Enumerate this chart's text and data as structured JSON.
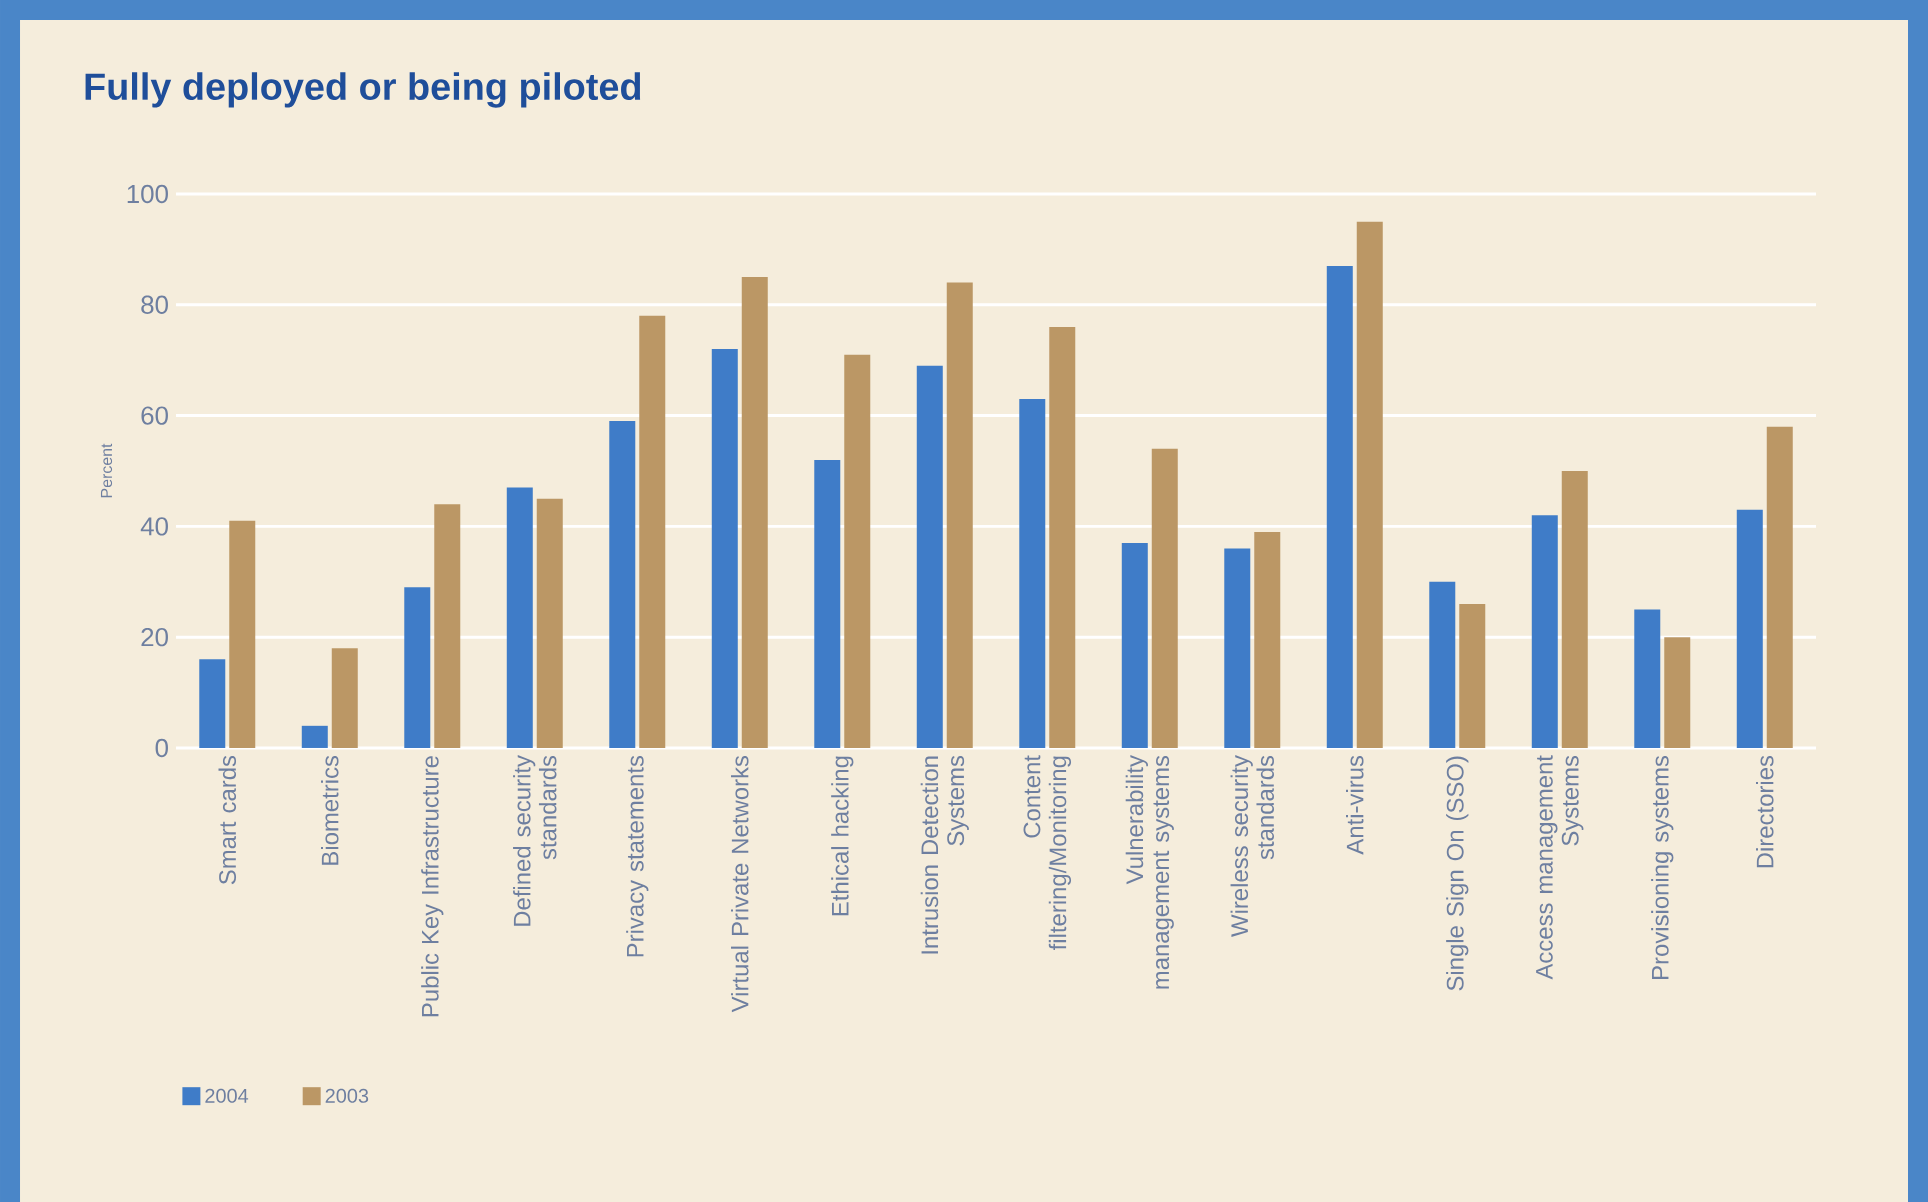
{
  "chart_data": {
    "type": "bar",
    "title": "Fully deployed or being piloted",
    "ylabel": "Percent",
    "categories": [
      "Smart cards",
      "Biometrics",
      "Public Key Infrastructure",
      "Defined security standards",
      "Privacy statements",
      "Virtual Private Networks",
      "Ethical hacking",
      "Intrusion Detection Systems",
      "Content filtering/Monitoring",
      "Vulnerability management systems",
      "Wireless security standards",
      "Anti-virus",
      "Single Sign On (SSO)",
      "Access management Systems",
      "Provisioning systems",
      "Directories"
    ],
    "series": [
      {
        "name": "2004",
        "color": "#3f7cc8",
        "values": [
          16,
          4,
          29,
          47,
          59,
          72,
          52,
          69,
          63,
          37,
          36,
          87,
          30,
          42,
          25,
          43
        ]
      },
      {
        "name": "2003",
        "color": "#bb9765",
        "values": [
          41,
          18,
          44,
          45,
          78,
          85,
          71,
          84,
          76,
          54,
          39,
          95,
          26,
          50,
          20,
          58
        ]
      }
    ],
    "ylim": [
      0,
      100
    ],
    "yticks": [
      0,
      20,
      40,
      60,
      80,
      100
    ],
    "grid": "y",
    "legend": "bottom left"
  }
}
